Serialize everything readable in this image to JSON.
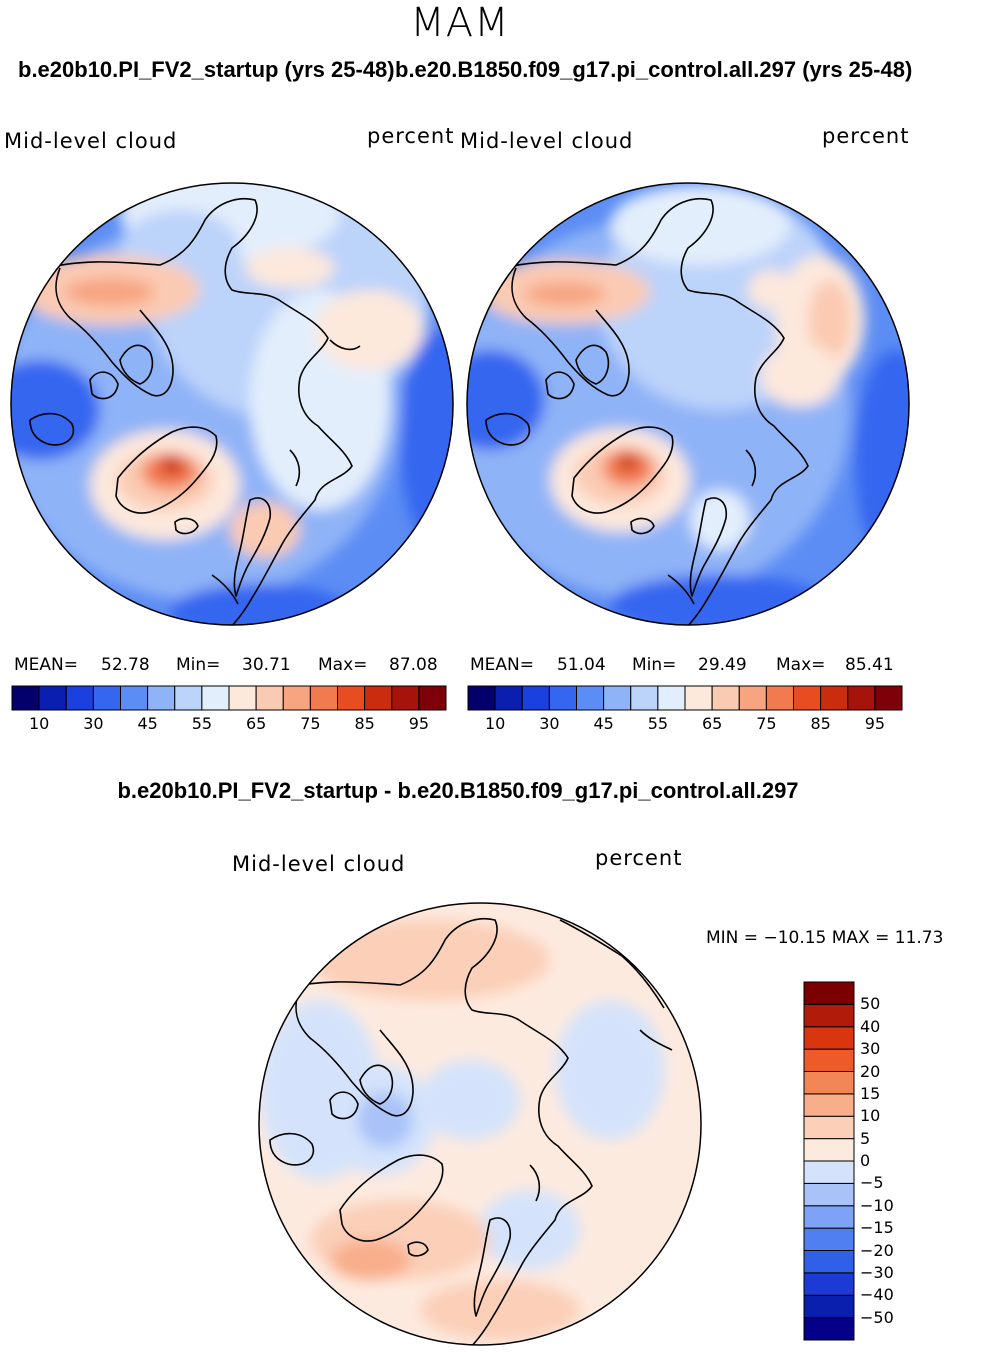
{
  "season": "MAM",
  "titles": {
    "left": "b.e20b10.PI_FV2_startup (yrs 25-48)",
    "right": "b.e20.B1850.f09_g17.pi_control.all.297 (yrs 25-48)",
    "diff": "b.e20b10.PI_FV2_startup - b.e20.B1850.f09_g17.pi_control.all.297"
  },
  "panels": [
    {
      "id": "left",
      "variable": "Mid-level cloud",
      "units": "percent",
      "mean_label": "MEAN=",
      "mean": "52.78",
      "min_label": "Min=",
      "min": "30.71",
      "max_label": "Max=",
      "max": "87.08"
    },
    {
      "id": "right",
      "variable": "Mid-level cloud",
      "units": "percent",
      "mean_label": "MEAN=",
      "mean": "51.04",
      "min_label": "Min=",
      "min": "29.49",
      "max_label": "Max=",
      "max": "85.41"
    },
    {
      "id": "diff",
      "variable": "Mid-level cloud",
      "units": "percent",
      "minmax_text": "MIN = −10.15  MAX =   11.73"
    }
  ],
  "colorbar_main": {
    "colors": [
      "#03006b",
      "#0a1fb0",
      "#1a40e0",
      "#3466f0",
      "#5c8df4",
      "#8fb3f7",
      "#bcd3fa",
      "#e3eefc",
      "#fde8dc",
      "#fbcab2",
      "#f7a481",
      "#f27a4f",
      "#e84d22",
      "#c92d0d",
      "#a5130a",
      "#7e0009"
    ],
    "tick_labels": [
      "10",
      "30",
      "45",
      "55",
      "65",
      "75",
      "85",
      "95"
    ]
  },
  "colorbar_diff": {
    "colors": [
      "#05008a",
      "#0b1fae",
      "#1b3bd4",
      "#3160e8",
      "#4f7ff0",
      "#7ea2f5",
      "#a9c2f8",
      "#d4e3fb",
      "#fdeadf",
      "#fbcfb8",
      "#f8ae8a",
      "#f38657",
      "#ef5a2a",
      "#d9350f",
      "#b11b0a",
      "#7c0000"
    ],
    "tick_labels": [
      "50",
      "40",
      "30",
      "20",
      "15",
      "10",
      "5",
      "0",
      "−5",
      "−10",
      "−15",
      "−20",
      "−30",
      "−40",
      "−50"
    ]
  }
}
